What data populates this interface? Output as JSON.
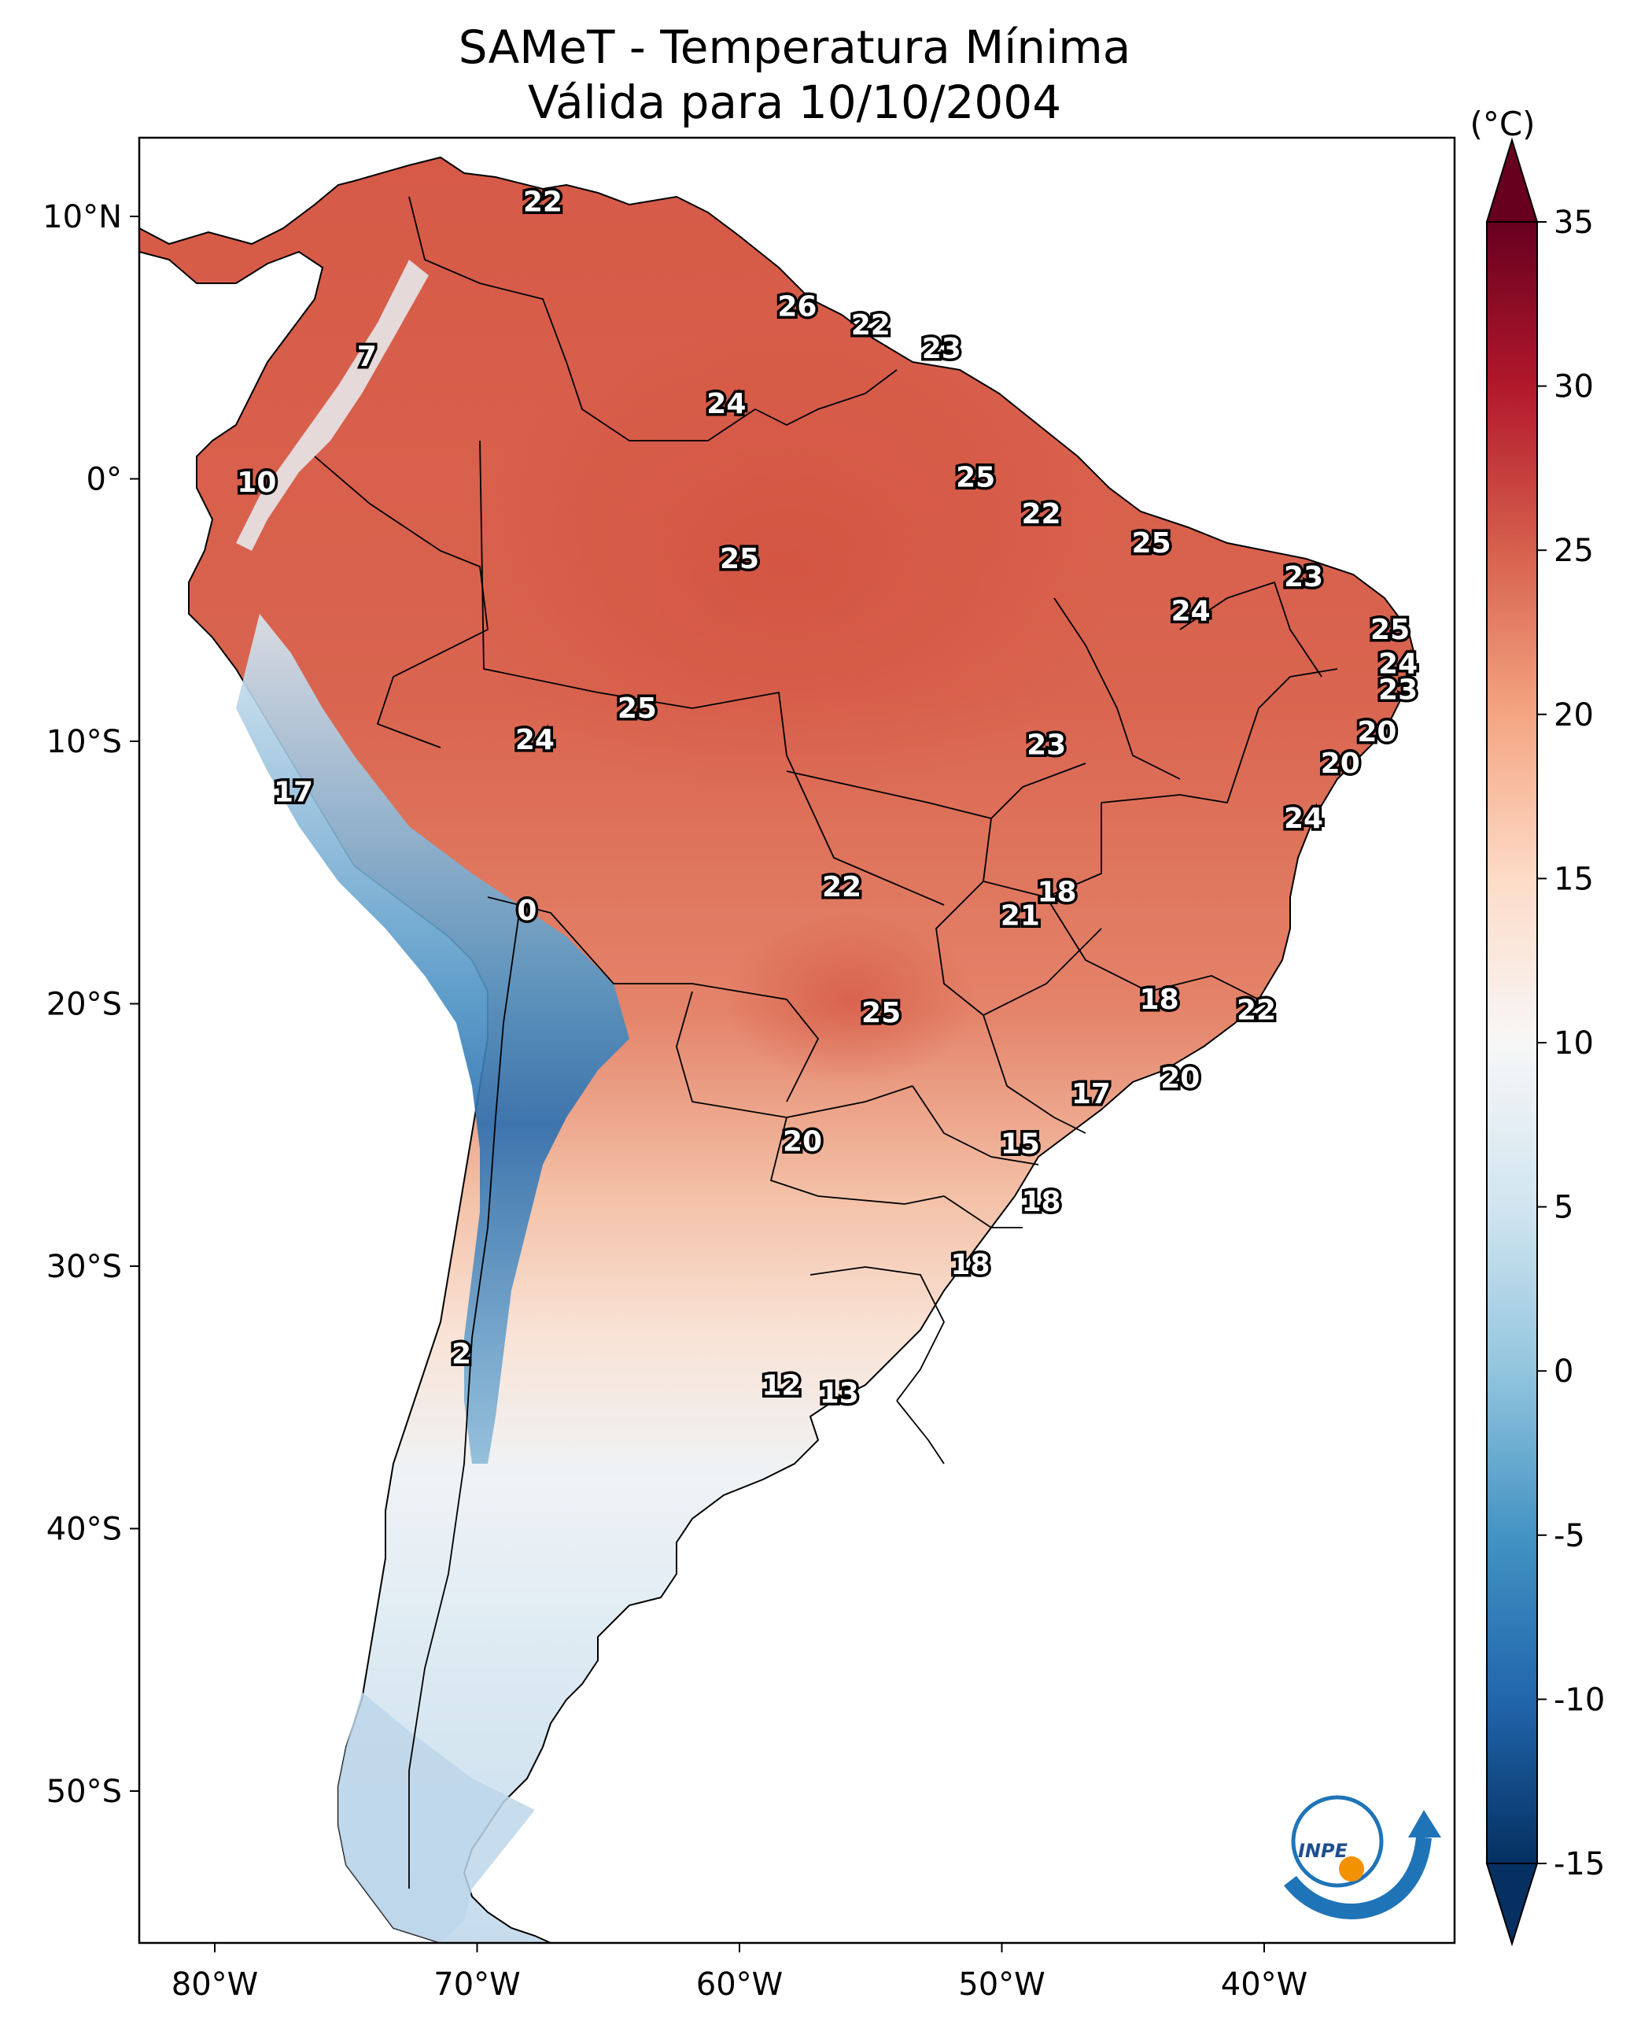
{
  "title": {
    "line1": "SAMeT - Temperatura Mínima",
    "line2": "Válida para 10/10/2004"
  },
  "colorbar": {
    "unit": "(°C)",
    "ticks": [
      "35",
      "30",
      "25",
      "20",
      "15",
      "10",
      "5",
      "0",
      "-5",
      "-10",
      "-15"
    ],
    "tick_values": [
      35,
      30,
      25,
      20,
      15,
      10,
      5,
      0,
      -5,
      -10,
      -15
    ],
    "range": [
      -15,
      35
    ],
    "colors": [
      "#053061",
      "#2166ac",
      "#4393c3",
      "#92c5de",
      "#d1e5f0",
      "#f7f7f7",
      "#fddbc7",
      "#f4a582",
      "#d6604d",
      "#b2182b",
      "#67001f"
    ]
  },
  "axes": {
    "lon_labels": [
      "80°W",
      "70°W",
      "60°W",
      "50°W",
      "40°W"
    ],
    "lat_labels": [
      "10°N",
      "0°",
      "10°S",
      "20°S",
      "30°S",
      "40°S",
      "50°S"
    ]
  },
  "logo": {
    "text": "INPE",
    "name": "inpe-logo"
  },
  "city_values": [
    {
      "lon": -67.5,
      "lat": 10.5,
      "value": "22"
    },
    {
      "lon": -57.8,
      "lat": 6.5,
      "value": "26"
    },
    {
      "lon": -55.0,
      "lat": 5.8,
      "value": "22"
    },
    {
      "lon": -52.3,
      "lat": 4.9,
      "value": "23"
    },
    {
      "lon": -74.2,
      "lat": 4.6,
      "value": "7"
    },
    {
      "lon": -60.5,
      "lat": 2.8,
      "value": "24"
    },
    {
      "lon": -78.4,
      "lat": -0.2,
      "value": "10"
    },
    {
      "lon": -51.0,
      "lat": 0.0,
      "value": "25"
    },
    {
      "lon": -48.5,
      "lat": -1.4,
      "value": "22"
    },
    {
      "lon": -60.0,
      "lat": -3.1,
      "value": "25"
    },
    {
      "lon": -44.3,
      "lat": -2.5,
      "value": "25"
    },
    {
      "lon": -38.5,
      "lat": -3.8,
      "value": "23"
    },
    {
      "lon": -42.8,
      "lat": -5.1,
      "value": "24"
    },
    {
      "lon": -35.2,
      "lat": -5.8,
      "value": "25"
    },
    {
      "lon": -34.9,
      "lat": -7.1,
      "value": "24"
    },
    {
      "lon": -34.9,
      "lat": -8.1,
      "value": "23"
    },
    {
      "lon": -63.9,
      "lat": -8.8,
      "value": "25"
    },
    {
      "lon": -67.8,
      "lat": -10.0,
      "value": "24"
    },
    {
      "lon": -48.3,
      "lat": -10.2,
      "value": "23"
    },
    {
      "lon": -35.7,
      "lat": -9.7,
      "value": "20"
    },
    {
      "lon": -37.1,
      "lat": -10.9,
      "value": "20"
    },
    {
      "lon": -77.0,
      "lat": -12.0,
      "value": "17"
    },
    {
      "lon": -38.5,
      "lat": -13.0,
      "value": "24"
    },
    {
      "lon": -56.1,
      "lat": -15.6,
      "value": "22"
    },
    {
      "lon": -47.9,
      "lat": -15.8,
      "value": "18"
    },
    {
      "lon": -49.3,
      "lat": -16.7,
      "value": "21"
    },
    {
      "lon": -68.1,
      "lat": -16.5,
      "value": "0"
    },
    {
      "lon": -44.0,
      "lat": -19.9,
      "value": "18"
    },
    {
      "lon": -40.3,
      "lat": -20.3,
      "value": "22"
    },
    {
      "lon": -54.6,
      "lat": -20.4,
      "value": "25"
    },
    {
      "lon": -43.2,
      "lat": -22.9,
      "value": "20"
    },
    {
      "lon": -46.6,
      "lat": -23.5,
      "value": "17"
    },
    {
      "lon": -57.6,
      "lat": -25.3,
      "value": "20"
    },
    {
      "lon": -49.3,
      "lat": -25.4,
      "value": "15"
    },
    {
      "lon": -48.5,
      "lat": -27.6,
      "value": "18"
    },
    {
      "lon": -51.2,
      "lat": -30.0,
      "value": "18"
    },
    {
      "lon": -70.6,
      "lat": -33.4,
      "value": "2"
    },
    {
      "lon": -58.4,
      "lat": -34.6,
      "value": "12"
    },
    {
      "lon": -56.2,
      "lat": -34.9,
      "value": "13"
    }
  ]
}
